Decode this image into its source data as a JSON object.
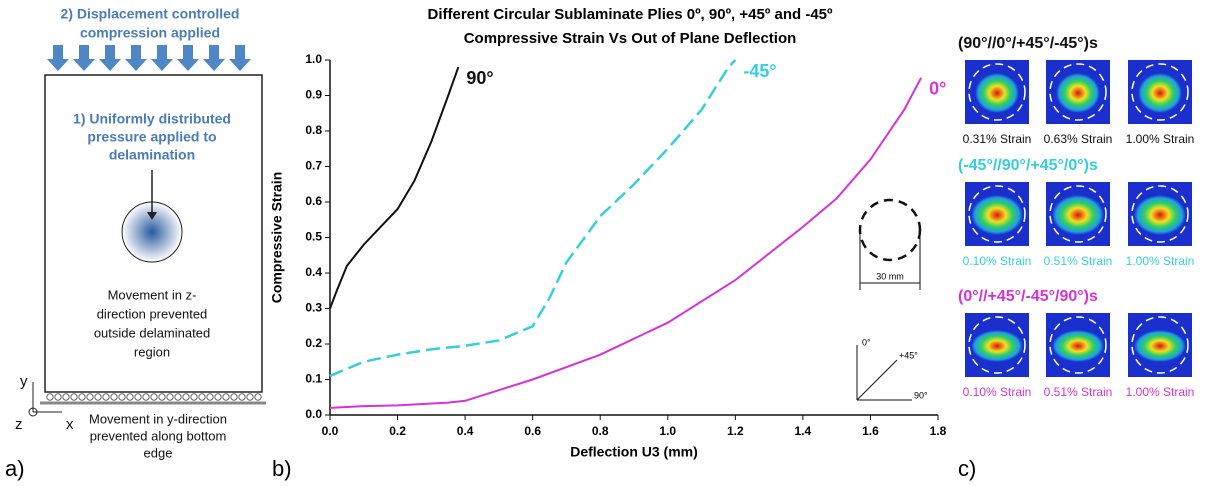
{
  "panel_a": {
    "label": "a)",
    "top_note": [
      "2) Displacement controlled",
      "compression applied"
    ],
    "pressure_note": [
      "1) Uniformly distributed",
      "pressure applied to",
      "delamination"
    ],
    "z_note": [
      "Movement in z-",
      "direction prevented",
      "outside delaminated",
      "region"
    ],
    "y_note": [
      "Movement in y-direction",
      "prevented along bottom",
      "edge"
    ],
    "axis_y": "y",
    "axis_z": "z",
    "axis_x": "x"
  },
  "panel_b": {
    "label": "b)",
    "size_note": "30 mm",
    "dir_0": "0°",
    "dir_45": "+45°",
    "dir_90": "90°"
  },
  "chart_data": {
    "type": "line",
    "title": [
      "Different Circular Sublaminate Plies 0º, 90º, +45º and -45º",
      "Compressive Strain Vs Out of Plane Deflection"
    ],
    "x_label": "Deflection U3 (mm)",
    "y_label": "Compressive Strain",
    "xlim": [
      0,
      1.8
    ],
    "xticks": [
      {
        "value": 0,
        "label": "0.0"
      },
      0.2,
      0.4,
      0.6,
      0.8,
      {
        "value": 1,
        "label": "1.0"
      },
      1.2,
      1.4,
      1.6,
      1.8
    ],
    "ylim": [
      0,
      1
    ],
    "yticks": [
      {
        "value": 0,
        "label": "0.0"
      },
      0.1,
      0.2,
      0.3,
      0.4,
      0.5,
      0.6,
      0.7,
      0.8,
      0.9,
      {
        "value": 1,
        "label": "1.0"
      }
    ],
    "series": [
      {
        "name": "90°",
        "color": "#111111",
        "dash": false,
        "x": [
          0,
          0.02,
          0.05,
          0.1,
          0.15,
          0.2,
          0.25,
          0.3,
          0.35,
          0.38
        ],
        "values": [
          0.3,
          0.35,
          0.42,
          0.48,
          0.53,
          0.58,
          0.66,
          0.77,
          0.9,
          0.98
        ]
      },
      {
        "name": "-45°",
        "color": "#33d0dc",
        "dash": true,
        "x": [
          0,
          0.05,
          0.1,
          0.2,
          0.3,
          0.4,
          0.5,
          0.6,
          0.65,
          0.7,
          0.8,
          0.9,
          1.0,
          1.1,
          1.18,
          1.2
        ],
        "values": [
          0.11,
          0.13,
          0.15,
          0.17,
          0.185,
          0.195,
          0.21,
          0.25,
          0.33,
          0.43,
          0.56,
          0.65,
          0.75,
          0.86,
          0.98,
          1.0
        ]
      },
      {
        "name": "0°",
        "color": "#d633d6",
        "dash": false,
        "x": [
          0,
          0.1,
          0.2,
          0.35,
          0.4,
          0.5,
          0.6,
          0.8,
          1.0,
          1.2,
          1.4,
          1.5,
          1.6,
          1.7,
          1.75
        ],
        "values": [
          0.02,
          0.025,
          0.027,
          0.035,
          0.04,
          0.07,
          0.1,
          0.17,
          0.26,
          0.38,
          0.53,
          0.61,
          0.72,
          0.86,
          0.95
        ]
      }
    ]
  },
  "panel_c": {
    "label": "c)",
    "groups": [
      {
        "title": "(90°//0°/+45°/-45°)s",
        "color": "#111111",
        "strains": [
          "0.31% Strain",
          "0.63% Strain",
          "1.00% Strain"
        ]
      },
      {
        "title": "(-45°//90°/+45°/0°)s",
        "color": "#33d0dc",
        "strains": [
          "0.10% Strain",
          "0.51% Strain",
          "1.00% Strain"
        ]
      },
      {
        "title": "(0°//+45°/-45°/90°)s",
        "color": "#d633d6",
        "strains": [
          "0.10% Strain",
          "0.51% Strain",
          "1.00% Strain"
        ]
      }
    ]
  }
}
